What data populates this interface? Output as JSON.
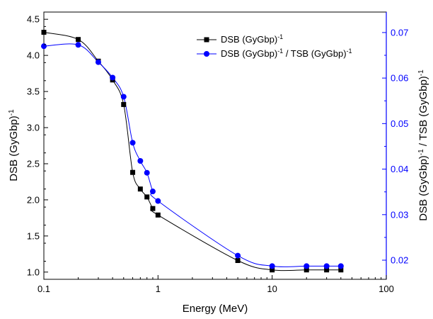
{
  "chart_data": {
    "type": "scatter",
    "x_scale": "log",
    "xlim": [
      0.1,
      100
    ],
    "xlabel": "Energy (MeV)",
    "x_ticks": [
      0.1,
      1,
      10,
      100
    ],
    "x_tick_labels": [
      "0.1",
      "1",
      "10",
      "100"
    ],
    "ylabel_left": "DSB (GyGbp)",
    "ylabel_left_sup": "-1",
    "ylim_left": [
      0.9,
      4.6
    ],
    "y_ticks_left": [
      1.0,
      1.5,
      2.0,
      2.5,
      3.0,
      3.5,
      4.0,
      4.5
    ],
    "y_tick_labels_left": [
      "1.0",
      "1.5",
      "2.0",
      "2.5",
      "3.0",
      "3.5",
      "4.0",
      "4.5"
    ],
    "ylabel_right_part1": "DSB (GyGbp)",
    "ylabel_right_sup1": "-1",
    "ylabel_right_part2": " / TSB (GyGbp)",
    "ylabel_right_sup2": "-1",
    "ylim_right": [
      0.0158,
      0.0745
    ],
    "y_ticks_right": [
      0.02,
      0.03,
      0.04,
      0.05,
      0.06,
      0.07
    ],
    "y_tick_labels_right": [
      "0.02",
      "0.03",
      "0.04",
      "0.05",
      "0.06",
      "0.07"
    ],
    "legend_position": "top-right",
    "right_axis_color": "#0000ff",
    "series": [
      {
        "name": "DSB (GyGbp)",
        "name_sup": "-1",
        "axis": "left",
        "marker": "square",
        "color": "#000000",
        "x": [
          0.1,
          0.2,
          0.3,
          0.4,
          0.5,
          0.6,
          0.7,
          0.8,
          0.9,
          1,
          5,
          10,
          20,
          30,
          40
        ],
        "y": [
          4.32,
          4.22,
          3.92,
          3.66,
          3.32,
          2.38,
          2.15,
          2.04,
          1.88,
          1.79,
          1.16,
          1.03,
          1.03,
          1.03,
          1.03
        ]
      },
      {
        "name": "DSB (GyGbp)",
        "name_sup": "-1",
        "name_rest": " / TSB (GyGbp)",
        "name_sup2": "-1",
        "axis": "right",
        "marker": "circle",
        "color": "#0000ff",
        "x": [
          0.1,
          0.2,
          0.3,
          0.4,
          0.5,
          0.6,
          0.7,
          0.8,
          0.9,
          1,
          5,
          10,
          20,
          30,
          40
        ],
        "y": [
          0.067,
          0.0673,
          0.0635,
          0.0601,
          0.0559,
          0.0458,
          0.0418,
          0.0392,
          0.0351,
          0.033,
          0.021,
          0.0187,
          0.0187,
          0.0187,
          0.0187
        ]
      }
    ]
  }
}
